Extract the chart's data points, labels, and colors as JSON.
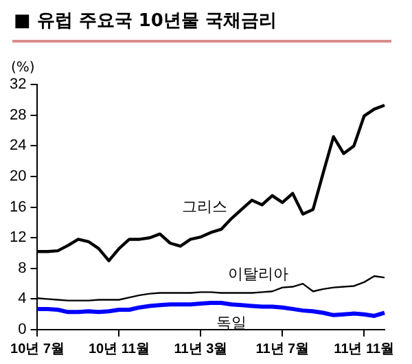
{
  "chart_data": {
    "type": "line",
    "title": "■ 유럽 주요국 10년물 국채금리",
    "ylabel": "(%)",
    "categories": [
      "10년 7월",
      null,
      null,
      null,
      null,
      null,
      null,
      null,
      "10년 11월",
      null,
      null,
      null,
      null,
      null,
      null,
      null,
      "11년 3월",
      null,
      null,
      null,
      null,
      null,
      null,
      null,
      "11년 7월",
      null,
      null,
      null,
      null,
      null,
      null,
      null,
      "11년 11월",
      null,
      null
    ],
    "series": [
      {
        "name": "그리스",
        "color": "#000000",
        "values": [
          10.2,
          10.2,
          10.3,
          11.0,
          11.8,
          11.5,
          10.6,
          9.0,
          10.6,
          11.8,
          11.8,
          12.0,
          12.5,
          11.3,
          10.9,
          11.8,
          12.1,
          12.7,
          13.1,
          14.5,
          15.7,
          16.9,
          16.3,
          17.5,
          16.6,
          17.8,
          15.1,
          15.7,
          20.5,
          25.2,
          23.0,
          24.0,
          27.9,
          28.8,
          29.3
        ]
      },
      {
        "name": "이탈리아",
        "color": "#000000",
        "values": [
          4.1,
          4.0,
          3.9,
          3.8,
          3.8,
          3.8,
          3.9,
          3.9,
          3.9,
          4.2,
          4.5,
          4.7,
          4.8,
          4.8,
          4.8,
          4.8,
          4.9,
          4.9,
          4.8,
          4.8,
          4.8,
          4.8,
          4.9,
          5.0,
          5.5,
          5.6,
          6.0,
          5.0,
          5.3,
          5.5,
          5.6,
          5.7,
          6.2,
          7.0,
          6.8
        ]
      },
      {
        "name": "독일",
        "color": "#0000ff",
        "values": [
          2.7,
          2.7,
          2.6,
          2.3,
          2.3,
          2.4,
          2.3,
          2.4,
          2.6,
          2.6,
          2.9,
          3.1,
          3.2,
          3.3,
          3.3,
          3.3,
          3.4,
          3.5,
          3.5,
          3.3,
          3.2,
          3.1,
          3.0,
          3.0,
          2.9,
          2.7,
          2.5,
          2.4,
          2.2,
          1.9,
          2.0,
          2.1,
          2.0,
          1.8,
          2.2
        ]
      }
    ],
    "ylim": [
      0,
      32
    ],
    "yticks": [
      0,
      4,
      8,
      12,
      16,
      20,
      24,
      28,
      32
    ],
    "grid": false,
    "legend": false,
    "marker": "none",
    "line_style": "solid"
  }
}
